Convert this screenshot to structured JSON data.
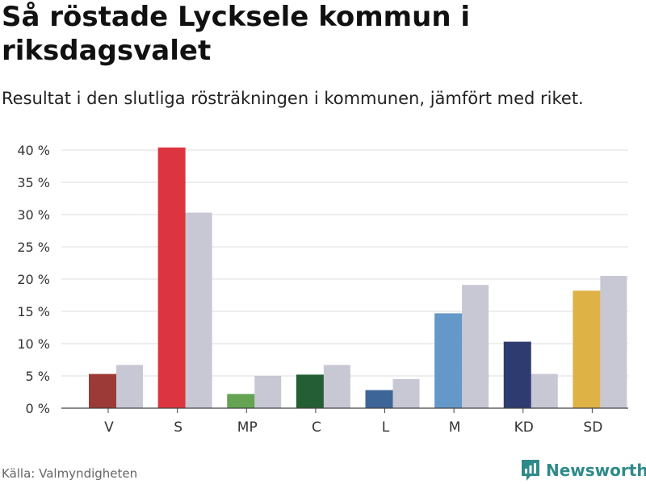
{
  "header": {
    "title": "Så röstade Lycksele kommun i riksdagsvalet",
    "subtitle": "Resultat i den slutliga rösträkningen i kommunen, jämfört med riket."
  },
  "footer": {
    "source": "Källa: Valmyndigheten",
    "brand": "Newsworthy"
  },
  "colors": {
    "grid": "#dddddd",
    "axis": "#444444",
    "national": "#c8c7d4",
    "brand": "#2f8a8a"
  },
  "chart_data": {
    "type": "bar",
    "title": "Så röstade Lycksele kommun i riksdagsvalet",
    "xlabel": "",
    "ylabel": "",
    "ylim": [
      0,
      40
    ],
    "yticks": [
      0,
      5,
      10,
      15,
      20,
      25,
      30,
      35,
      40
    ],
    "ytick_labels": [
      "0 %",
      "5 %",
      "10 %",
      "15 %",
      "20 %",
      "25 %",
      "30 %",
      "35 %",
      "40 %"
    ],
    "grid": true,
    "categories": [
      "V",
      "S",
      "MP",
      "C",
      "L",
      "M",
      "KD",
      "SD"
    ],
    "series": [
      {
        "name": "Lycksele kommun",
        "values": [
          5.3,
          40.4,
          2.2,
          5.2,
          2.8,
          14.7,
          10.3,
          18.2
        ],
        "colors": [
          "#9b3a37",
          "#dd3540",
          "#63a351",
          "#235e34",
          "#3e6597",
          "#6398c8",
          "#2e3b70",
          "#deb245"
        ]
      },
      {
        "name": "Riket",
        "values": [
          6.7,
          30.3,
          5.0,
          6.7,
          4.5,
          19.1,
          5.3,
          20.5
        ],
        "color": "#c8c7d4"
      }
    ]
  }
}
